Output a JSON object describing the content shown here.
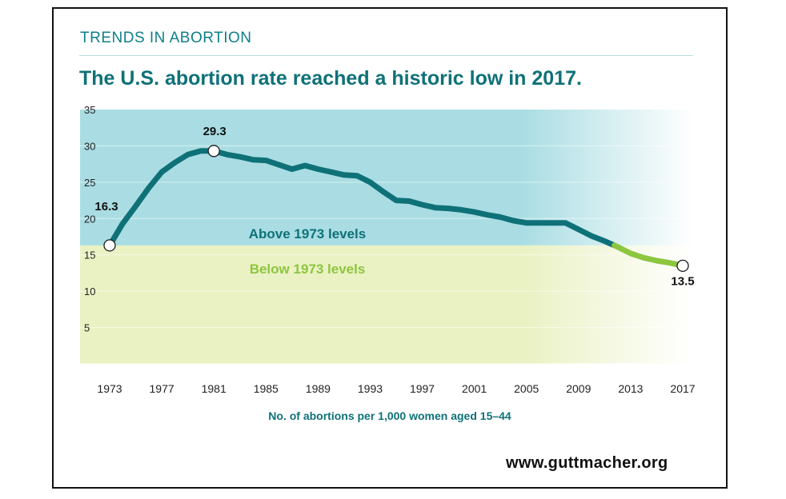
{
  "header": {
    "kicker": "TRENDS IN ABORTION",
    "title": "The U.S. abortion rate reached a historic low in 2017."
  },
  "footer": {
    "source": "www.guttmacher.org"
  },
  "colors": {
    "above_band": "#a9dde3",
    "below_band": "#eaf1c3",
    "line_above": "#0f7178",
    "line_below": "#8cc63f",
    "label_above": "#0f7178",
    "label_below": "#8cc63f",
    "axis_text": "#222222",
    "xlabel": "#0f7178"
  },
  "chart_data": {
    "type": "line",
    "title": "The U.S. abortion rate reached a historic low in 2017.",
    "xlabel": "No. of abortions per 1,000 women aged 15–44",
    "ylabel": "",
    "xlim": [
      1971,
      2018
    ],
    "ylim": [
      0,
      35
    ],
    "y_ticks": [
      5,
      10,
      15,
      20,
      25,
      30,
      35
    ],
    "x_ticks": [
      1973,
      1977,
      1981,
      1985,
      1989,
      1993,
      1997,
      2001,
      2005,
      2009,
      2013,
      2017
    ],
    "reference_level": 16.3,
    "region_labels": {
      "above": "Above 1973 levels",
      "below": "Below 1973 levels"
    },
    "annotations": [
      {
        "year": 1973,
        "value": 16.3,
        "label": "16.3"
      },
      {
        "year": 1981,
        "value": 29.3,
        "label": "29.3"
      },
      {
        "year": 2017,
        "value": 13.5,
        "label": "13.5"
      }
    ],
    "series": [
      {
        "name": "Abortion rate",
        "x": [
          1973,
          1974,
          1975,
          1976,
          1977,
          1978,
          1979,
          1980,
          1981,
          1982,
          1983,
          1984,
          1985,
          1986,
          1987,
          1988,
          1989,
          1990,
          1991,
          1992,
          1993,
          1994,
          1995,
          1996,
          1997,
          1998,
          1999,
          2000,
          2001,
          2002,
          2003,
          2004,
          2005,
          2006,
          2007,
          2008,
          2009,
          2010,
          2011,
          2012,
          2013,
          2014,
          2015,
          2016,
          2017
        ],
        "values": [
          16.3,
          19.3,
          21.7,
          24.2,
          26.4,
          27.7,
          28.8,
          29.3,
          29.3,
          28.8,
          28.5,
          28.1,
          28.0,
          27.4,
          26.8,
          27.3,
          26.8,
          26.4,
          26.0,
          25.9,
          25.0,
          23.7,
          22.5,
          22.4,
          21.9,
          21.5,
          21.4,
          21.2,
          20.9,
          20.5,
          20.2,
          19.7,
          19.4,
          19.4,
          19.4,
          19.4,
          18.5,
          17.6,
          16.9,
          16.1,
          15.2,
          14.6,
          14.2,
          13.9,
          13.5
        ]
      }
    ]
  }
}
